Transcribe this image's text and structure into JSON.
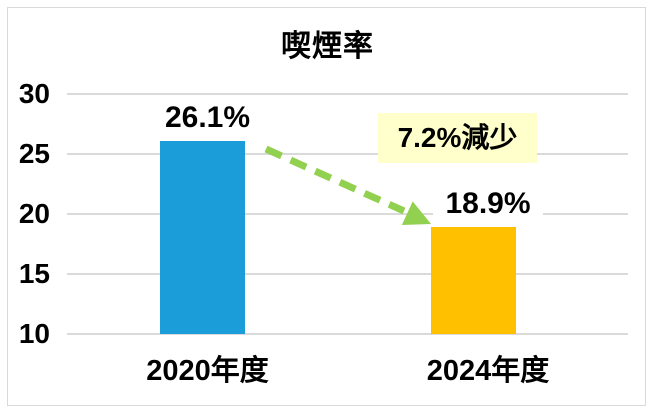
{
  "chart_data": {
    "type": "bar",
    "title": "喫煙率",
    "categories": [
      "2020年度",
      "2024年度"
    ],
    "values": [
      26.1,
      18.9
    ],
    "value_labels": [
      "26.1%",
      "18.9%"
    ],
    "bar_colors": [
      "#1A9DD9",
      "#FFC000"
    ],
    "xlabel": "",
    "ylabel": "",
    "ylim": [
      10,
      30
    ],
    "yticks": [
      30,
      25,
      20,
      15,
      10
    ],
    "grid": true,
    "legend": false,
    "annotation": {
      "text": "7.2%減少",
      "background": "#FFFFCC"
    },
    "arrow": {
      "style": "dashed",
      "color": "#92D050",
      "from_category": "2020年度",
      "to_category": "2024年度"
    }
  },
  "colors": {
    "background": "#FFFFFF",
    "gridline": "#DADADA",
    "chart_border": "#D9D9D9",
    "text": "#000000"
  }
}
